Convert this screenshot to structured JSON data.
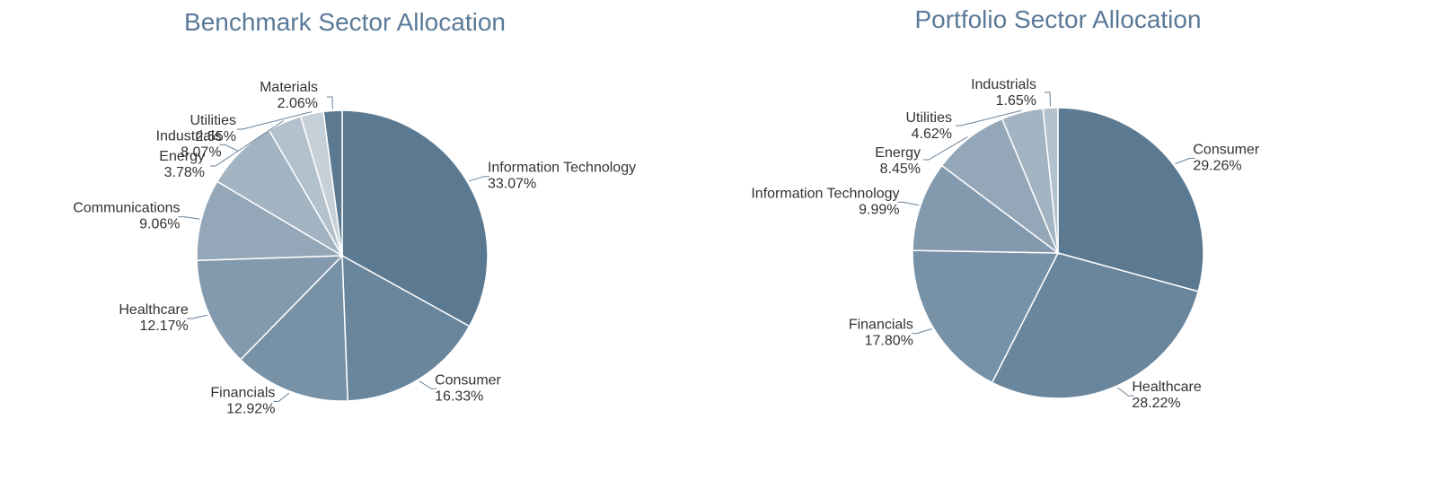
{
  "palette": [
    "#5b7a92",
    "#6a869d",
    "#7791a7",
    "#8399ad",
    "#94a7b8",
    "#a2b3c2",
    "#b3c1cd",
    "#c6d0d9"
  ],
  "chart_data": [
    {
      "type": "pie",
      "title": "Benchmark Sector Allocation",
      "start_angle_deg": 0,
      "direction": "clockwise",
      "slices": [
        {
          "label": "Information Technology",
          "value": 33.07,
          "value_label": "33.07%"
        },
        {
          "label": "Consumer",
          "value": 16.33,
          "value_label": "16.33%"
        },
        {
          "label": "Financials",
          "value": 12.92,
          "value_label": "12.92%"
        },
        {
          "label": "Healthcare",
          "value": 12.17,
          "value_label": "12.17%"
        },
        {
          "label": "Communications",
          "value": 9.06,
          "value_label": "9.06%"
        },
        {
          "label": "Industrials",
          "value": 8.07,
          "value_label": "8.07%"
        },
        {
          "label": "Energy",
          "value": 3.78,
          "value_label": "3.78%"
        },
        {
          "label": "Utilities",
          "value": 2.55,
          "value_label": "2.55%"
        },
        {
          "label": "Materials",
          "value": 2.06,
          "value_label": "2.06%"
        }
      ]
    },
    {
      "type": "pie",
      "title": "Portfolio Sector Allocation",
      "start_angle_deg": 0,
      "direction": "clockwise",
      "slices": [
        {
          "label": "Consumer",
          "value": 29.26,
          "value_label": "29.26%"
        },
        {
          "label": "Healthcare",
          "value": 28.22,
          "value_label": "28.22%"
        },
        {
          "label": "Financials",
          "value": 17.8,
          "value_label": "17.80%"
        },
        {
          "label": "Information Technology",
          "value": 9.99,
          "value_label": "9.99%"
        },
        {
          "label": "Energy",
          "value": 8.45,
          "value_label": "8.45%"
        },
        {
          "label": "Utilities",
          "value": 4.62,
          "value_label": "4.62%"
        },
        {
          "label": "Industrials",
          "value": 1.65,
          "value_label": "1.65%"
        }
      ]
    }
  ]
}
